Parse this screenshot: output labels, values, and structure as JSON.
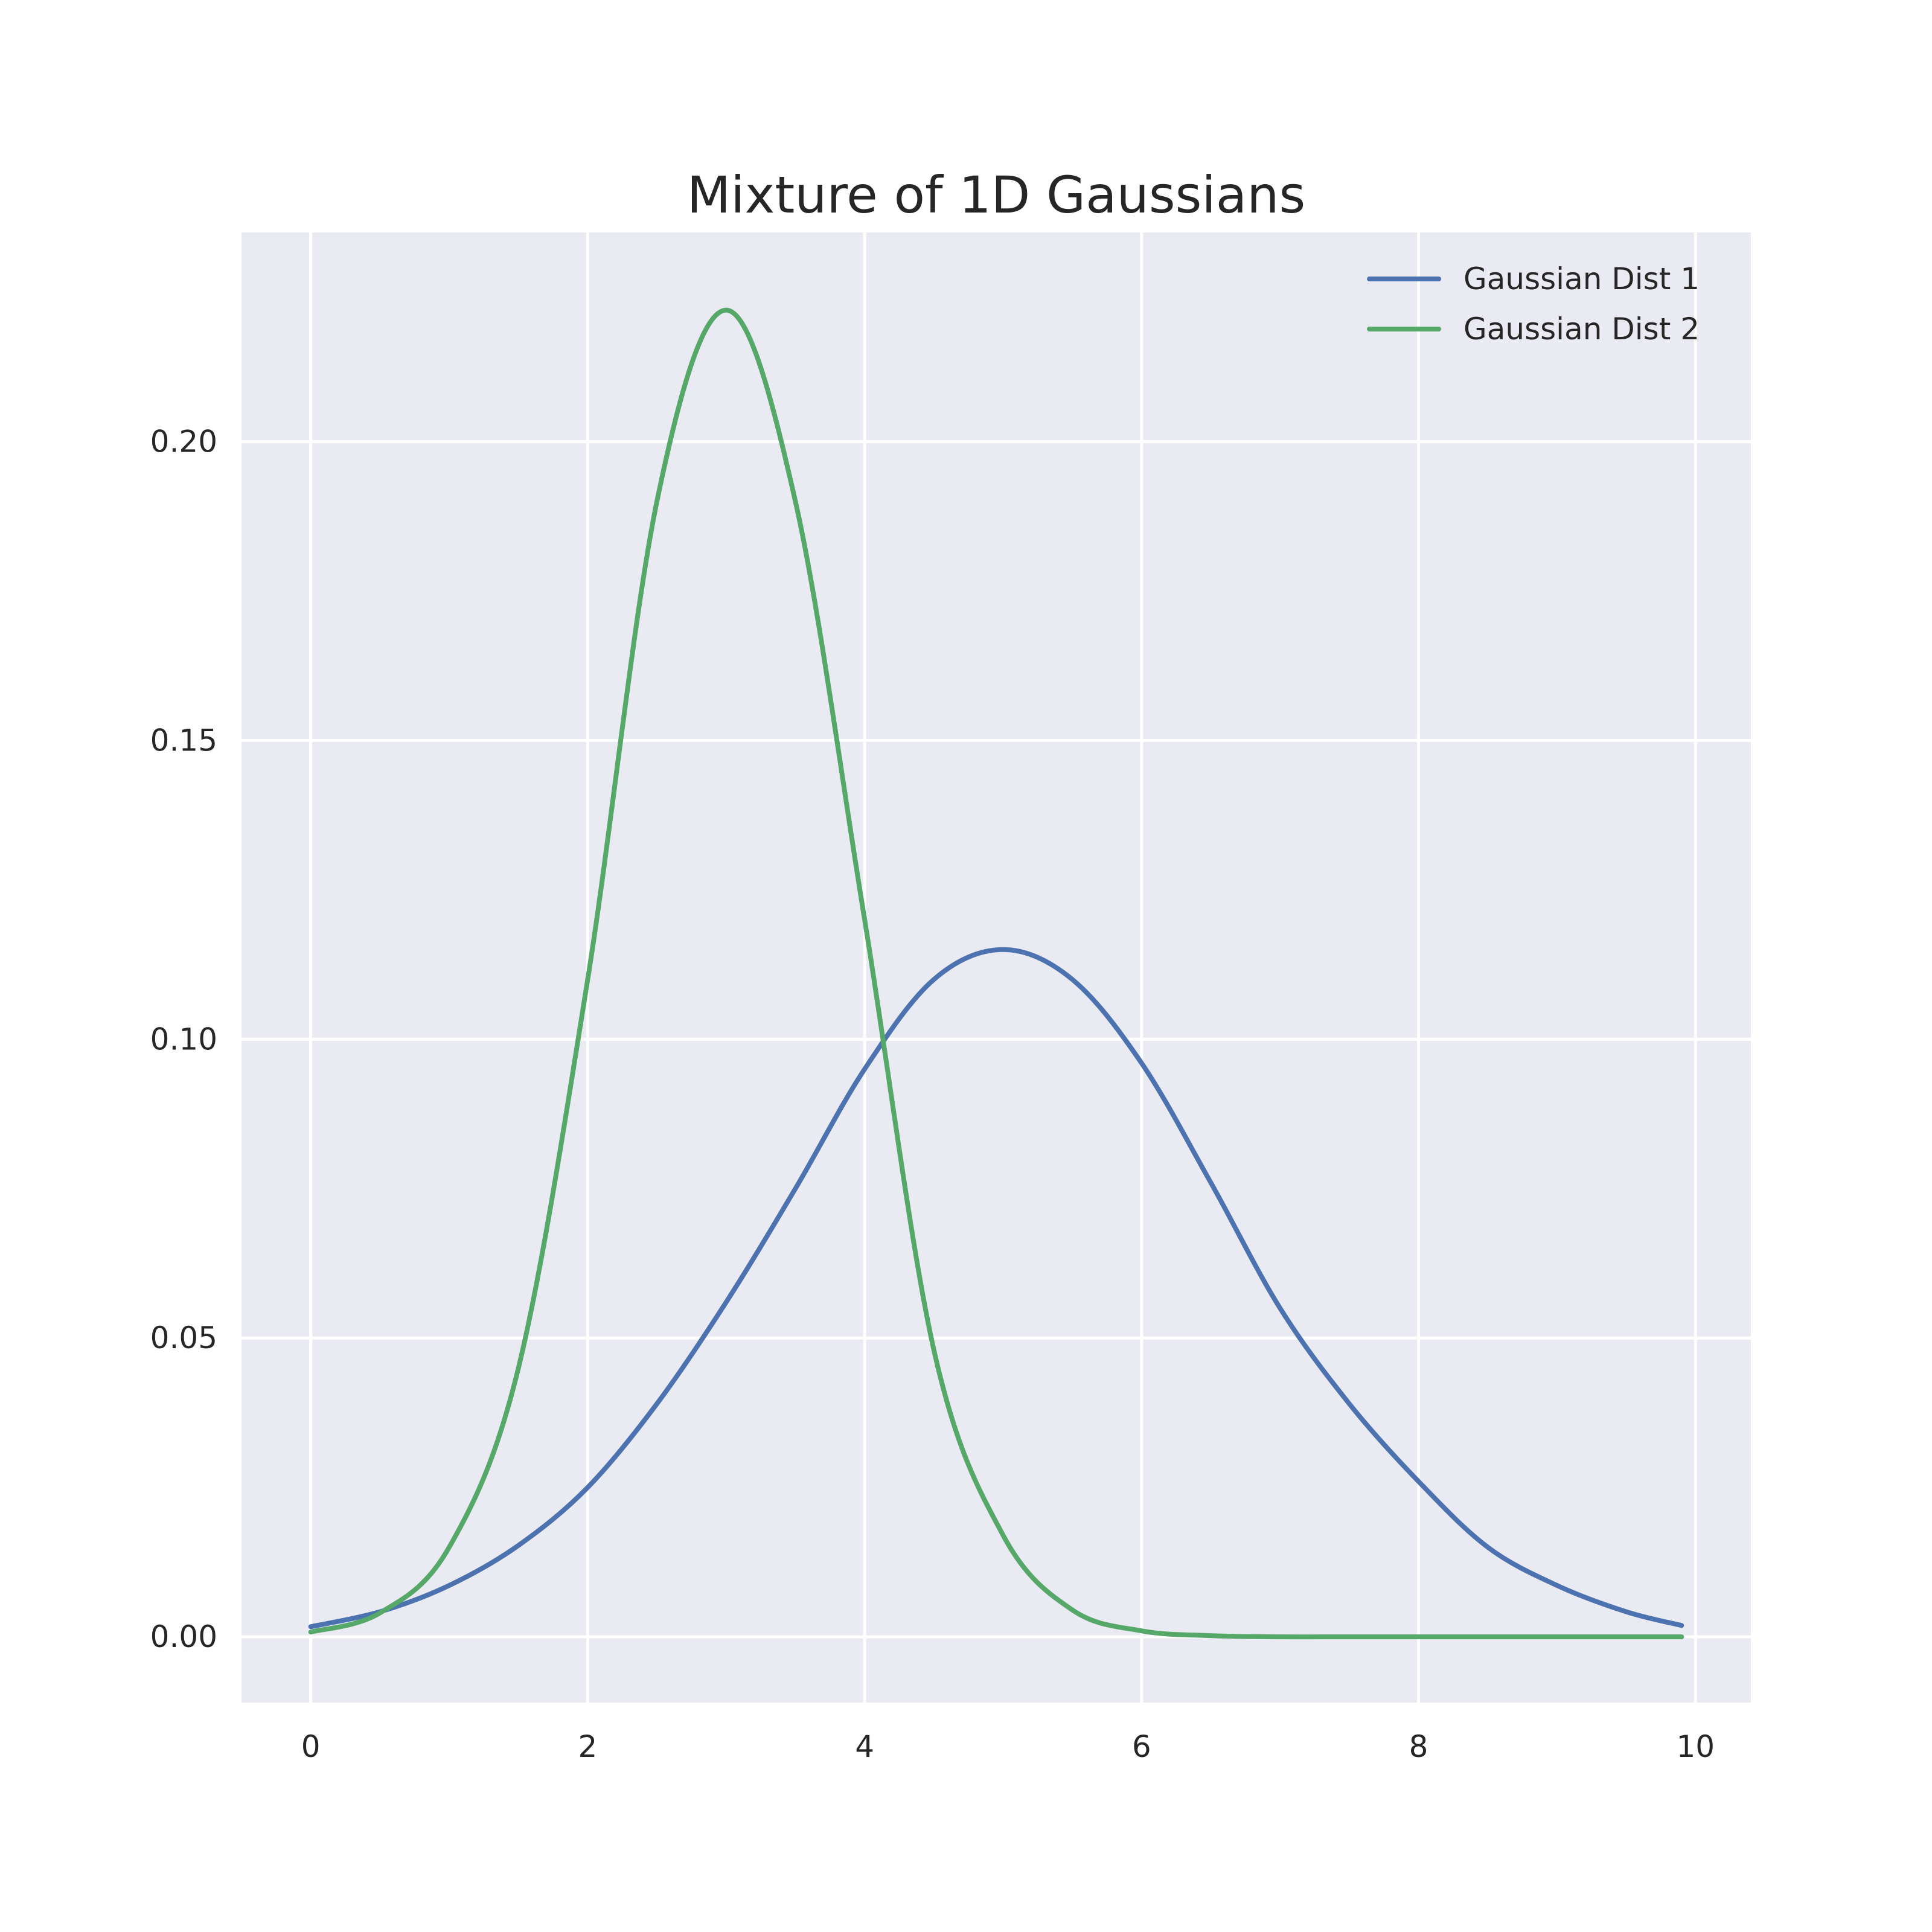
{
  "chart_data": {
    "type": "line",
    "title": "Mixture of 1D Gaussians",
    "xlabel": "",
    "ylabel": "",
    "xlim": [
      -0.5,
      10.4
    ],
    "ylim": [
      -0.011,
      0.235
    ],
    "xticks": [
      0,
      2,
      4,
      6,
      8,
      10
    ],
    "yticks": [
      0.0,
      0.05,
      0.1,
      0.15,
      0.2
    ],
    "xtick_labels": [
      "0",
      "2",
      "4",
      "6",
      "8",
      "10"
    ],
    "ytick_labels": [
      "0.00",
      "0.05",
      "0.10",
      "0.15",
      "0.20"
    ],
    "grid": true,
    "legend_position": "top-right",
    "x": [
      0.0,
      0.5,
      1.0,
      1.5,
      2.0,
      2.5,
      3.0,
      3.5,
      4.0,
      4.5,
      5.0,
      5.5,
      6.0,
      6.5,
      7.0,
      7.5,
      8.0,
      8.5,
      9.0,
      9.5,
      9.9
    ],
    "series": [
      {
        "name": "Gaussian Dist 1",
        "color": "#4c72b0",
        "values": [
          0.0017,
          0.0042,
          0.0086,
          0.0153,
          0.025,
          0.039,
          0.056,
          0.075,
          0.095,
          0.11,
          0.115,
          0.11,
          0.096,
          0.076,
          0.055,
          0.039,
          0.026,
          0.015,
          0.0086,
          0.0042,
          0.0019
        ]
      },
      {
        "name": "Gaussian Dist 2",
        "color": "#55a868",
        "values": [
          0.0008,
          0.004,
          0.015,
          0.045,
          0.11,
          0.19,
          0.222,
          0.19,
          0.12,
          0.048,
          0.017,
          0.0045,
          0.001,
          0.0002,
          0.0,
          0.0,
          0.0,
          0.0,
          0.0,
          0.0,
          0.0
        ]
      }
    ]
  }
}
